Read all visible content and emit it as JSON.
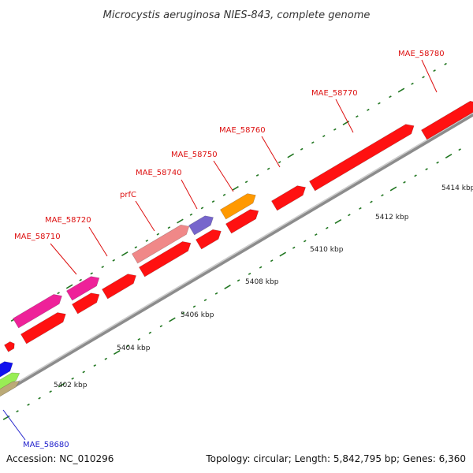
{
  "title": "Microcystis aeruginosa NIES-843, complete genome",
  "footer": {
    "accession": "Accession: NC_010296",
    "summary": "Topology: circular; Length: 5,842,795 bp; Genes: 6,360"
  },
  "scale_labels": [
    "5402 kbp",
    "5404 kbp",
    "5406 kbp",
    "5408 kbp",
    "5410 kbp",
    "5412 kbp",
    "5414 kbp"
  ],
  "gene_labels": [
    {
      "text": "MAE_58680",
      "color": "#2222cc"
    },
    {
      "text": "MAE_58710",
      "color": "#dd1111"
    },
    {
      "text": "MAE_58720",
      "color": "#dd1111"
    },
    {
      "text": "prfC",
      "color": "#dd1111"
    },
    {
      "text": "MAE_58740",
      "color": "#dd1111"
    },
    {
      "text": "MAE_58750",
      "color": "#dd1111"
    },
    {
      "text": "MAE_58760",
      "color": "#dd1111"
    },
    {
      "text": "MAE_58770",
      "color": "#dd1111"
    },
    {
      "text": "MAE_58780",
      "color": "#dd1111"
    }
  ],
  "colors": {
    "cds": "#ff1111",
    "cds_pink": "#ee2299",
    "cds_salmon": "#f08888",
    "cds_purple": "#7766cc",
    "cds_orange": "#ff9900",
    "cds_blue": "#1111ee",
    "cds_green": "#99ee55",
    "cds_tan": "#bbaa77",
    "backbone": "#999999",
    "tick": "#227722"
  }
}
